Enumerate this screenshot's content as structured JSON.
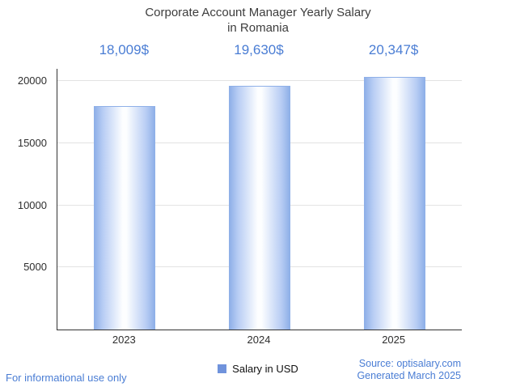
{
  "chart_data": {
    "type": "bar",
    "title_line1": "Corporate Account Manager Yearly Salary",
    "title_line2": "in Romania",
    "categories": [
      "2023",
      "2024",
      "2025"
    ],
    "values": [
      18009,
      19630,
      20347
    ],
    "value_labels": [
      "18,009$",
      "19,630$",
      "20,347$"
    ],
    "series_name": "Salary in USD",
    "xlabel": "",
    "ylabel": "",
    "ylim": [
      0,
      21000
    ],
    "yticks": [
      5000,
      10000,
      15000,
      20000
    ],
    "grid": true,
    "legend_position": "bottom"
  },
  "footer": {
    "left": "For informational use only",
    "source": "Source: optisalary.com",
    "generated": "Generated March 2025"
  },
  "colors": {
    "accent_blue": "#4a7dd4",
    "bar_edge": "#8fb0e8",
    "bar_center": "#ffffff",
    "legend_swatch": "#7093dc",
    "title_text": "#3d3d3d",
    "axis_text": "#2e2e2e",
    "gridline": "#e3e3e3",
    "axis_line": "#333333"
  }
}
